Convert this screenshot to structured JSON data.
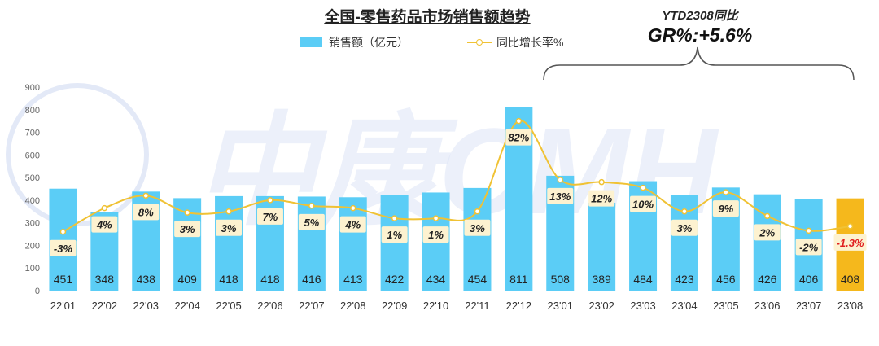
{
  "title": "全国-零售药品市场销售额趋势",
  "legend": {
    "bar": "销售额（亿元）",
    "line": "同比增长率%"
  },
  "ytd": {
    "label": "YTD2308同比",
    "value": "GR%:+5.6%"
  },
  "watermark": "中康CMH",
  "chart_data": {
    "type": "bar",
    "categories": [
      "22'01",
      "22'02",
      "22'03",
      "22'04",
      "22'05",
      "22'06",
      "22'07",
      "22'08",
      "22'09",
      "22'10",
      "22'11",
      "22'12",
      "23'01",
      "23'02",
      "23'03",
      "23'04",
      "23'05",
      "23'06",
      "23'07",
      "23'08"
    ],
    "yticks": [
      "0",
      "100",
      "200",
      "300",
      "400",
      "500",
      "600",
      "700",
      "800",
      "900"
    ],
    "ylim": [
      0,
      900
    ],
    "series": [
      {
        "name": "销售额（亿元）",
        "type": "bar",
        "values": [
          451,
          348,
          438,
          409,
          418,
          418,
          416,
          413,
          422,
          434,
          454,
          811,
          508,
          389,
          484,
          423,
          456,
          426,
          406,
          408
        ]
      },
      {
        "name": "同比增长率%",
        "type": "line",
        "labels": [
          "-3%",
          "4%",
          "8%",
          "3%",
          "3%",
          "7%",
          "5%",
          "4%",
          "1%",
          "1%",
          "3%",
          "82%",
          "13%",
          "12%",
          "10%",
          "3%",
          "9%",
          "2%",
          "-2%",
          "-1.3%"
        ],
        "plot_values": [
          260,
          365,
          420,
          345,
          350,
          400,
          375,
          365,
          320,
          320,
          350,
          750,
          490,
          480,
          455,
          350,
          435,
          330,
          265,
          285
        ]
      }
    ],
    "colors": {
      "bar": "#5bcdf6",
      "bar_highlight": "#f5b81c",
      "line": "#f0c234",
      "label_box": "#fdf2d0",
      "negative_highlight_text": "#e02020"
    }
  }
}
